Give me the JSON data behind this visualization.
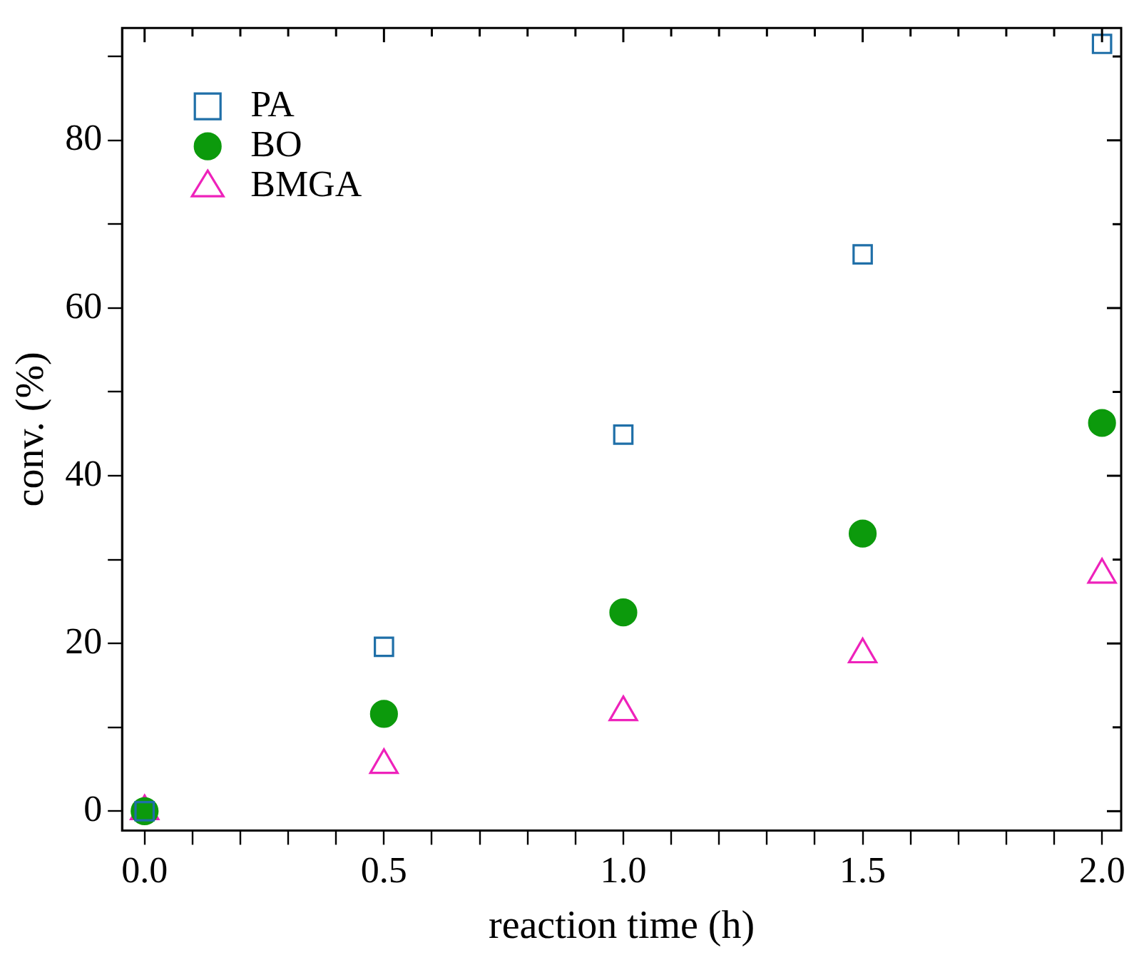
{
  "chart_data": {
    "type": "scatter",
    "xlabel": "reaction time (h)",
    "ylabel": "conv. (%)",
    "x": [
      0,
      0.5,
      1.0,
      1.5,
      2.0
    ],
    "series": [
      {
        "name": "PA",
        "color": "#1f6fa8",
        "marker": "square",
        "values": [
          0,
          19.6,
          44.9,
          66.4,
          91.5
        ]
      },
      {
        "name": "BO",
        "color": "#0c9a0c",
        "marker": "circle",
        "values": [
          0,
          11.6,
          23.7,
          33.1,
          46.3
        ]
      },
      {
        "name": "BMGA",
        "color": "#ee22bb",
        "marker": "triangle",
        "values": [
          0,
          5.5,
          11.8,
          18.7,
          28.2
        ]
      }
    ],
    "xlim": [
      -0.047,
      2.04
    ],
    "xticks": [
      {
        "value": 0,
        "label": "0.0"
      },
      {
        "value": 0.1,
        "label": null
      },
      {
        "value": 0.2,
        "label": null
      },
      {
        "value": 0.3,
        "label": null
      },
      {
        "value": 0.4,
        "label": null
      },
      {
        "value": 0.5,
        "label": "0.5"
      },
      {
        "value": 0.6,
        "label": null
      },
      {
        "value": 0.7,
        "label": null
      },
      {
        "value": 0.8,
        "label": null
      },
      {
        "value": 0.9,
        "label": null
      },
      {
        "value": 1,
        "label": "1.0"
      },
      {
        "value": 1.1,
        "label": null
      },
      {
        "value": 1.2,
        "label": null
      },
      {
        "value": 1.3,
        "label": null
      },
      {
        "value": 1.4,
        "label": null
      },
      {
        "value": 1.5,
        "label": "1.5"
      },
      {
        "value": 1.6,
        "label": null
      },
      {
        "value": 1.7,
        "label": null
      },
      {
        "value": 1.8,
        "label": null
      },
      {
        "value": 1.9,
        "label": null
      },
      {
        "value": 2,
        "label": "2.0"
      }
    ],
    "ylim": [
      -2.3,
      93.4
    ],
    "yticks": [
      0,
      {
        "value": 10,
        "label": null
      },
      20,
      {
        "value": 30,
        "label": null
      },
      40,
      {
        "value": 50,
        "label": null
      },
      60,
      {
        "value": 70,
        "label": null
      },
      80,
      {
        "value": 90,
        "label": null
      }
    ],
    "grid": false,
    "legend": "top left"
  }
}
